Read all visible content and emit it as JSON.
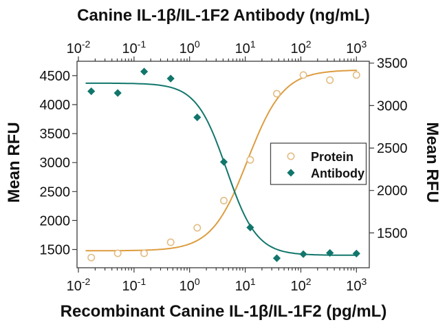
{
  "figure": {
    "background": "#ffffff",
    "axis_color": "#3a3a3a",
    "text_color": "#111111"
  },
  "chart_data": {
    "type": "scatter",
    "x_scale": "log",
    "title_top": "Canine IL-1β/IL-1F2 Antibody (ng/mL)",
    "title_bottom": "Recombinant Canine IL-1β/IL-1F2 (pg/mL)",
    "ylabel_left": "Mean RFU",
    "ylabel_right": "Mean RFU",
    "x_tick_exponents": [
      -2,
      -1,
      0,
      1,
      2,
      3
    ],
    "x_range_log": [
      -2.025,
      3.231
    ],
    "grid": "off",
    "left_axis": {
      "label": "Mean RFU",
      "ticks": [
        1500,
        2000,
        2500,
        3000,
        3500,
        4000,
        4500
      ],
      "min": 1185,
      "max": 4748
    },
    "right_axis": {
      "label": "Mean RFU",
      "ticks": [
        1500,
        2000,
        2500,
        3000,
        3500
      ],
      "min": 1090,
      "max": 3522
    },
    "legend": {
      "position": "middle-right",
      "items": [
        "Protein",
        "Antibody"
      ]
    },
    "series": [
      {
        "name": "Protein",
        "axis": "right",
        "marker": "open-circle",
        "marker_color": "#e2bd84",
        "line_color": "#dd9c3f",
        "trend": "increasing",
        "x": [
          0.017,
          0.051,
          0.152,
          0.457,
          1.37,
          4.12,
          12.3,
          37,
          111,
          333,
          1000
        ],
        "y": [
          1210,
          1260,
          1260,
          1390,
          1560,
          1880,
          2360,
          3140,
          3360,
          3300,
          3360
        ],
        "fit": {
          "bottom": 1290,
          "top": 3420,
          "ec50": 11,
          "hill": 1.35
        }
      },
      {
        "name": "Antibody",
        "axis": "left",
        "marker": "filled-diamond",
        "marker_color": "#11766b",
        "line_color": "#11766b",
        "trend": "decreasing",
        "x": [
          0.017,
          0.051,
          0.152,
          0.457,
          1.37,
          4.12,
          12.3,
          37,
          111,
          333,
          1000
        ],
        "y": [
          4230,
          4200,
          4570,
          4450,
          3780,
          3010,
          1880,
          1350,
          1420,
          1440,
          1430
        ],
        "fit": {
          "bottom": 1400,
          "top": 4370,
          "ec50": 4.6,
          "hill": 1.6
        }
      }
    ]
  }
}
